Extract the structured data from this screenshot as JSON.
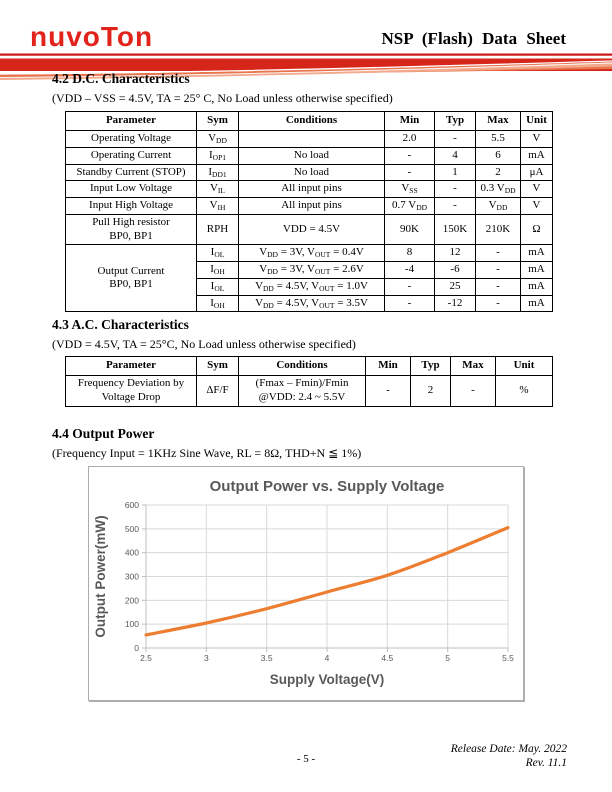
{
  "header": {
    "logo_text": "nuvoTon",
    "title": "NSP (Flash) Data Sheet"
  },
  "sections": {
    "dc": {
      "heading": "4.2 D.C. Characteristics",
      "condition": "(VDD – VSS = 4.5V, TA = 25° C, No Load unless otherwise specified)"
    },
    "ac": {
      "heading": "4.3 A.C. Characteristics",
      "condition": "(VDD = 4.5V, TA = 25°C, No Load unless otherwise specified)"
    },
    "power": {
      "heading": "4.4 Output Power",
      "condition": "(Frequency Input = 1KHz Sine Wave, RL = 8Ω, THD+N ≦ 1%)"
    }
  },
  "dc_table": {
    "headers": [
      "Parameter",
      "Sym",
      "Conditions",
      "Min",
      "Typ",
      "Max",
      "Unit"
    ],
    "rows": [
      {
        "cells": [
          {
            "t": "Operating Voltage"
          },
          {
            "t": "V~DD~"
          },
          {
            "t": ""
          },
          {
            "t": "2.0"
          },
          {
            "t": "-"
          },
          {
            "t": "5.5"
          },
          {
            "t": "V"
          }
        ]
      },
      {
        "cells": [
          {
            "t": "Operating Current"
          },
          {
            "t": "I~OP1~"
          },
          {
            "t": "No load"
          },
          {
            "t": "-"
          },
          {
            "t": "4"
          },
          {
            "t": "6"
          },
          {
            "t": "mA"
          }
        ]
      },
      {
        "cells": [
          {
            "t": "Standby Current (STOP)"
          },
          {
            "t": "I~DD1~"
          },
          {
            "t": "No load"
          },
          {
            "t": "-"
          },
          {
            "t": "1"
          },
          {
            "t": "2"
          },
          {
            "t": "μA"
          }
        ]
      },
      {
        "cells": [
          {
            "t": "Input Low Voltage"
          },
          {
            "t": "V~IL~"
          },
          {
            "t": "All input pins"
          },
          {
            "t": "V~SS~"
          },
          {
            "t": "-"
          },
          {
            "t": "0.3 V~DD~"
          },
          {
            "t": "V"
          }
        ]
      },
      {
        "cells": [
          {
            "t": "Input High Voltage"
          },
          {
            "t": "V~IH~"
          },
          {
            "t": "All input pins"
          },
          {
            "t": "0.7 V~DD~"
          },
          {
            "t": "-"
          },
          {
            "t": "V~DD~"
          },
          {
            "t": "V"
          }
        ]
      },
      {
        "cells": [
          {
            "t": "Pull High resistor\nBP0, BP1"
          },
          {
            "t": "RPH"
          },
          {
            "t": "VDD = 4.5V"
          },
          {
            "t": "90K"
          },
          {
            "t": "150K"
          },
          {
            "t": "210K"
          },
          {
            "t": "Ω"
          }
        ]
      },
      {
        "cells": [
          {
            "t": "Output Current\nBP0, BP1",
            "rowspan": 4
          },
          {
            "t": "I~OL~"
          },
          {
            "t": "V~DD~ = 3V, V~OUT~ = 0.4V"
          },
          {
            "t": "8"
          },
          {
            "t": "12"
          },
          {
            "t": "-"
          },
          {
            "t": "mA"
          }
        ]
      },
      {
        "cells": [
          {
            "t": "I~OH~"
          },
          {
            "t": "V~DD~ = 3V, V~OUT~ = 2.6V"
          },
          {
            "t": "-4"
          },
          {
            "t": "-6"
          },
          {
            "t": "-"
          },
          {
            "t": "mA"
          }
        ]
      },
      {
        "cells": [
          {
            "t": "I~OL~"
          },
          {
            "t": "V~DD~ = 4.5V, V~OUT~ = 1.0V"
          },
          {
            "t": "-"
          },
          {
            "t": "25"
          },
          {
            "t": "-"
          },
          {
            "t": "mA"
          }
        ]
      },
      {
        "cells": [
          {
            "t": "I~OH~"
          },
          {
            "t": "V~DD~ = 4.5V, V~OUT~ = 3.5V"
          },
          {
            "t": "-"
          },
          {
            "t": "-12"
          },
          {
            "t": "-"
          },
          {
            "t": "mA"
          }
        ]
      }
    ]
  },
  "ac_table": {
    "headers": [
      "Parameter",
      "Sym",
      "Conditions",
      "Min",
      "Typ",
      "Max",
      "Unit"
    ],
    "rows": [
      {
        "cells": [
          {
            "t": "Frequency Deviation by\nVoltage Drop"
          },
          {
            "t": "ΔF/F"
          },
          {
            "t": "(Fmax – Fmin)/Fmin\n@VDD: 2.4 ~ 5.5V"
          },
          {
            "t": "-"
          },
          {
            "t": "2"
          },
          {
            "t": "-"
          },
          {
            "t": "%"
          }
        ]
      }
    ]
  },
  "chart_data": {
    "type": "line",
    "title": "Output Power vs. Supply Voltage",
    "xlabel": "Supply Voltage(V)",
    "ylabel": "Output Power(mW)",
    "x": [
      2.5,
      3,
      3.5,
      4,
      4.5,
      5,
      5.5
    ],
    "values": [
      55,
      105,
      165,
      235,
      305,
      400,
      505
    ],
    "xlim": [
      2.5,
      5.5
    ],
    "ylim": [
      0,
      600
    ],
    "x_ticks": [
      "2.5",
      "3",
      "3.5",
      "4",
      "4.5",
      "5",
      "5.5"
    ],
    "y_ticks": [
      "0",
      "100",
      "200",
      "300",
      "400",
      "500",
      "600"
    ],
    "line_color": "#ED7D31",
    "grid_color": "#D9D9D9",
    "axis_color": "#BFBFBF",
    "text_color": "#595959",
    "grid": true,
    "legend": false
  },
  "footer": {
    "release_date": "Release Date: May. 2022",
    "revision": "Rev. 11.1",
    "page_number": "- 5 -"
  }
}
